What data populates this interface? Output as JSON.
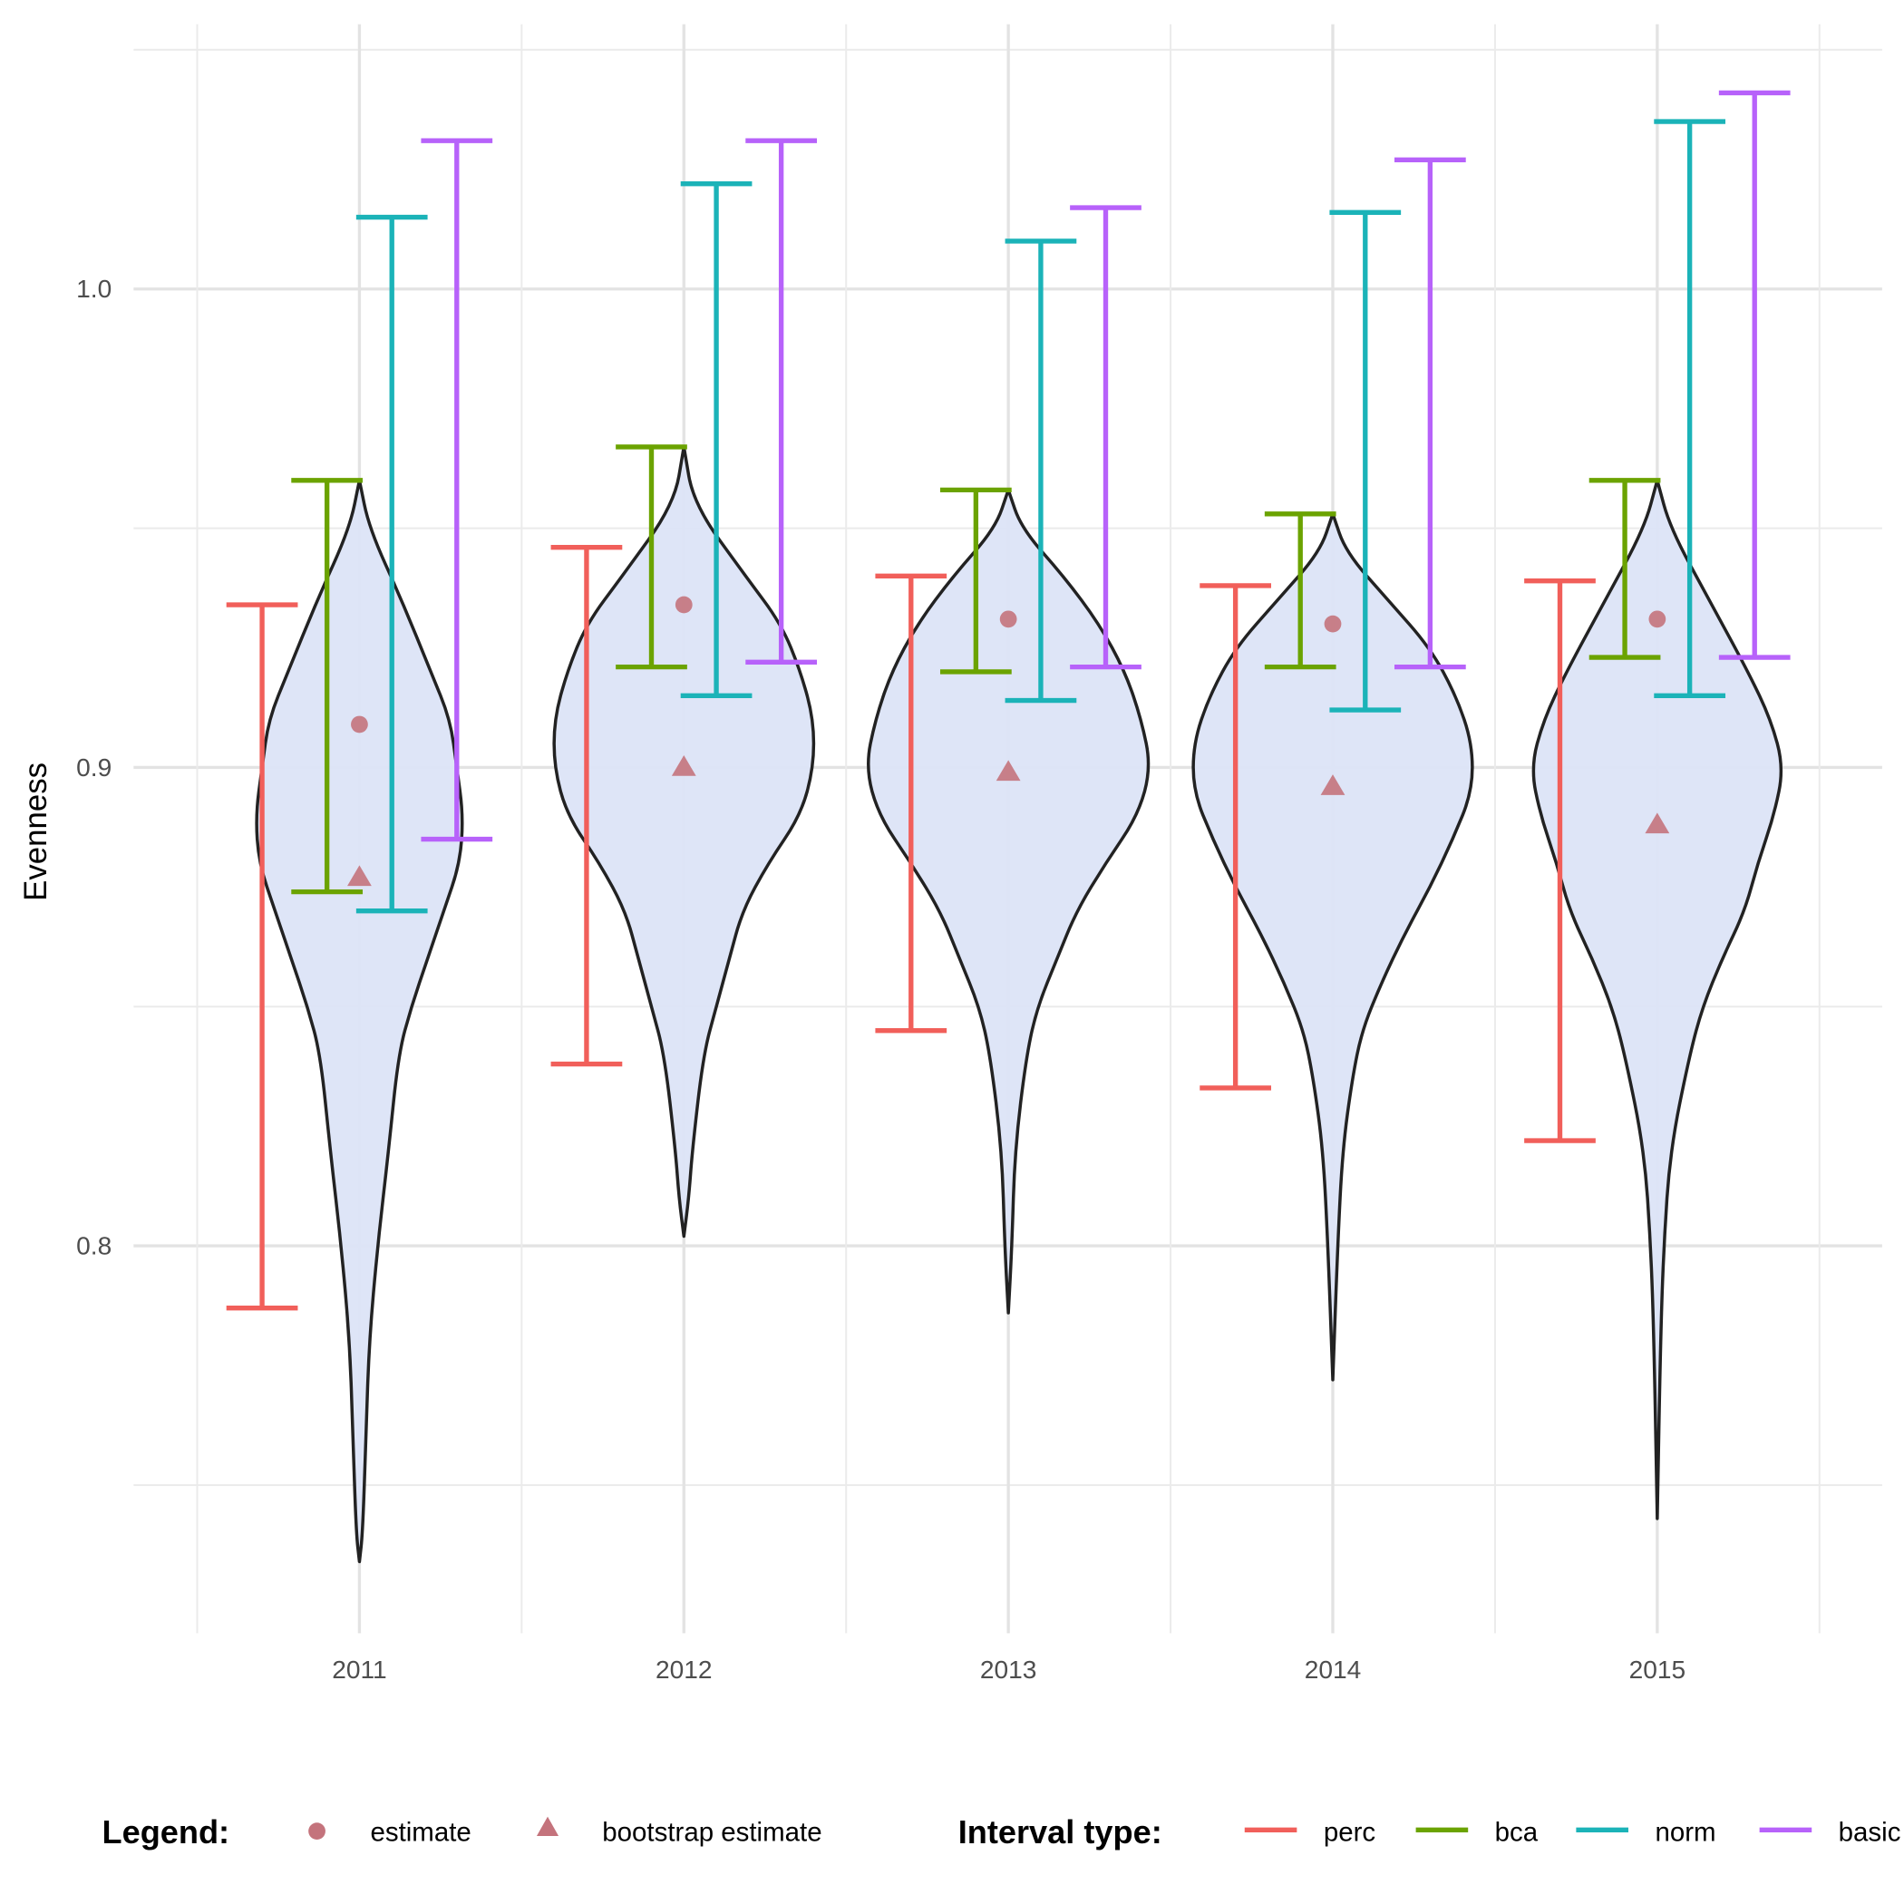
{
  "chart_data": {
    "type": "violin",
    "title": "",
    "xlabel": "",
    "ylabel": "Evenness",
    "categories": [
      "2011",
      "2012",
      "2013",
      "2014",
      "2015"
    ],
    "y_ticks": [
      "0.8",
      "0.9",
      "1.0"
    ],
    "y_tick_values": [
      0.8,
      0.9,
      1.0
    ],
    "ylim": [
      0.72,
      1.055
    ],
    "grid": true,
    "legend_position": "bottom",
    "legend": {
      "title": "Legend:",
      "items": [
        {
          "label": "estimate",
          "shape": "circle"
        },
        {
          "label": "bootstrap estimate",
          "shape": "triangle"
        }
      ]
    },
    "interval_legend": {
      "title": "Interval type:",
      "items": [
        {
          "key": "perc",
          "label": "perc",
          "color": "#F15F5A"
        },
        {
          "key": "bca",
          "label": "bca",
          "color": "#6BA300"
        },
        {
          "key": "norm",
          "label": "norm",
          "color": "#1BB3B8"
        },
        {
          "key": "basic",
          "label": "basic",
          "color": "#B762FA"
        }
      ]
    },
    "point_color": "#C4737C",
    "violin_fill": "#DCE4F7",
    "violin_stroke": "#222222",
    "groups": [
      {
        "year": "2011",
        "estimate": 0.909,
        "bootstrap_estimate": 0.877,
        "intervals": {
          "perc": [
            0.787,
            0.934
          ],
          "bca": [
            0.874,
            0.96
          ],
          "norm": [
            0.87,
            1.015
          ],
          "basic": [
            0.885,
            1.031
          ]
        },
        "violin": [
          [
            0.96,
            0
          ],
          [
            0.95,
            0.03
          ],
          [
            0.935,
            0.13
          ],
          [
            0.92,
            0.22
          ],
          [
            0.91,
            0.28
          ],
          [
            0.9,
            0.3
          ],
          [
            0.89,
            0.32
          ],
          [
            0.88,
            0.31
          ],
          [
            0.87,
            0.26
          ],
          [
            0.86,
            0.21
          ],
          [
            0.85,
            0.16
          ],
          [
            0.84,
            0.12
          ],
          [
            0.82,
            0.09
          ],
          [
            0.8,
            0.056
          ],
          [
            0.78,
            0.03
          ],
          [
            0.76,
            0.02
          ],
          [
            0.74,
            0.01
          ],
          [
            0.734,
            0
          ]
        ]
      },
      {
        "year": "2012",
        "estimate": 0.934,
        "bootstrap_estimate": 0.9,
        "intervals": {
          "perc": [
            0.838,
            0.946
          ],
          "bca": [
            0.921,
            0.967
          ],
          "norm": [
            0.915,
            1.022
          ],
          "basic": [
            0.922,
            1.031
          ]
        },
        "violin": [
          [
            0.967,
            0
          ],
          [
            0.955,
            0.03
          ],
          [
            0.94,
            0.19
          ],
          [
            0.93,
            0.3
          ],
          [
            0.92,
            0.36
          ],
          [
            0.91,
            0.4
          ],
          [
            0.9,
            0.4
          ],
          [
            0.89,
            0.36
          ],
          [
            0.88,
            0.26
          ],
          [
            0.87,
            0.18
          ],
          [
            0.86,
            0.14
          ],
          [
            0.85,
            0.1
          ],
          [
            0.84,
            0.06
          ],
          [
            0.82,
            0.026
          ],
          [
            0.81,
            0.015
          ],
          [
            0.802,
            0
          ]
        ]
      },
      {
        "year": "2013",
        "estimate": 0.931,
        "bootstrap_estimate": 0.899,
        "intervals": {
          "perc": [
            0.845,
            0.94
          ],
          "bca": [
            0.92,
            0.958
          ],
          "norm": [
            0.914,
            1.01
          ],
          "basic": [
            0.921,
            1.017
          ]
        },
        "violin": [
          [
            0.958,
            0
          ],
          [
            0.95,
            0.04
          ],
          [
            0.94,
            0.17
          ],
          [
            0.93,
            0.28
          ],
          [
            0.92,
            0.36
          ],
          [
            0.91,
            0.41
          ],
          [
            0.9,
            0.44
          ],
          [
            0.89,
            0.4
          ],
          [
            0.88,
            0.3
          ],
          [
            0.87,
            0.21
          ],
          [
            0.86,
            0.15
          ],
          [
            0.85,
            0.09
          ],
          [
            0.84,
            0.056
          ],
          [
            0.82,
            0.02
          ],
          [
            0.8,
            0.011
          ],
          [
            0.786,
            0
          ]
        ]
      },
      {
        "year": "2014",
        "estimate": 0.93,
        "bootstrap_estimate": 0.896,
        "intervals": {
          "perc": [
            0.833,
            0.938
          ],
          "bca": [
            0.921,
            0.953
          ],
          "norm": [
            0.912,
            1.016
          ],
          "basic": [
            0.921,
            1.027
          ]
        },
        "violin": [
          [
            0.953,
            0
          ],
          [
            0.945,
            0.04
          ],
          [
            0.935,
            0.17
          ],
          [
            0.925,
            0.3
          ],
          [
            0.915,
            0.38
          ],
          [
            0.905,
            0.43
          ],
          [
            0.895,
            0.43
          ],
          [
            0.885,
            0.37
          ],
          [
            0.875,
            0.3
          ],
          [
            0.865,
            0.22
          ],
          [
            0.855,
            0.15
          ],
          [
            0.845,
            0.09
          ],
          [
            0.835,
            0.06
          ],
          [
            0.82,
            0.03
          ],
          [
            0.8,
            0.015
          ],
          [
            0.772,
            0
          ]
        ]
      },
      {
        "year": "2015",
        "estimate": 0.931,
        "bootstrap_estimate": 0.888,
        "intervals": {
          "perc": [
            0.822,
            0.939
          ],
          "bca": [
            0.923,
            0.96
          ],
          "norm": [
            0.915,
            1.035
          ],
          "basic": [
            0.923,
            1.041
          ]
        },
        "violin": [
          [
            0.96,
            0
          ],
          [
            0.95,
            0.04
          ],
          [
            0.935,
            0.16
          ],
          [
            0.92,
            0.28
          ],
          [
            0.91,
            0.35
          ],
          [
            0.9,
            0.39
          ],
          [
            0.89,
            0.36
          ],
          [
            0.88,
            0.31
          ],
          [
            0.87,
            0.27
          ],
          [
            0.86,
            0.2
          ],
          [
            0.85,
            0.14
          ],
          [
            0.84,
            0.1
          ],
          [
            0.82,
            0.04
          ],
          [
            0.8,
            0.02
          ],
          [
            0.78,
            0.01
          ],
          [
            0.743,
            0
          ]
        ]
      }
    ]
  }
}
